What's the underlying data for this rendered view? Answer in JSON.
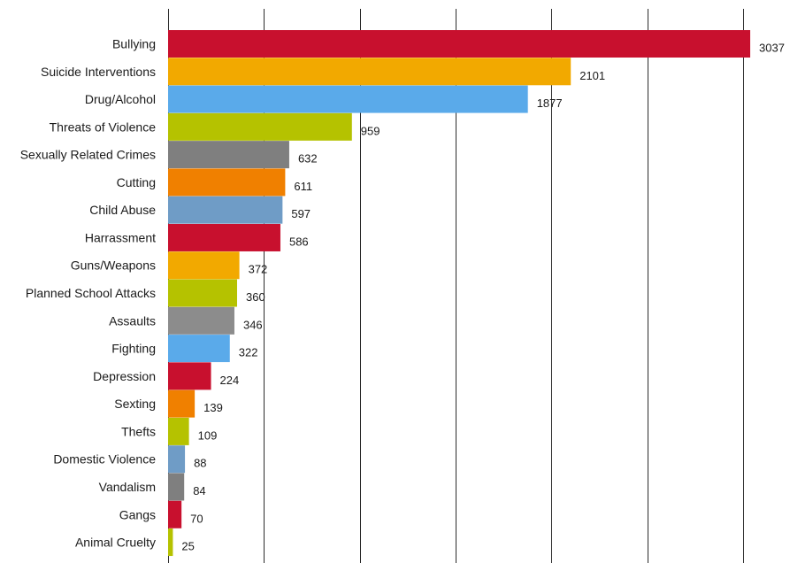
{
  "chart_data": {
    "type": "bar",
    "orientation": "horizontal",
    "title": "",
    "xlabel": "",
    "ylabel": "",
    "xlim": [
      0,
      3000
    ],
    "grid": "vertical",
    "legend": "none",
    "categories": [
      "Bullying",
      "Suicide Interventions",
      "Drug/Alcohol",
      "Threats of Violence",
      "Sexually Related Crimes",
      "Cutting",
      "Child Abuse",
      "Harrassment",
      "Guns/Weapons",
      "Planned School Attacks",
      "Assaults",
      "Fighting",
      "Depression",
      "Sexting",
      "Thefts",
      "Domestic Violence",
      "Vandalism",
      "Gangs",
      "Animal Cruelty"
    ],
    "values": [
      3037,
      2101,
      1877,
      959,
      632,
      611,
      597,
      586,
      372,
      360,
      346,
      322,
      224,
      139,
      109,
      88,
      84,
      70,
      25
    ],
    "value_labels": [
      "3037",
      "2101",
      "1877",
      "959",
      "632",
      "611",
      "597",
      "586",
      "372",
      "360",
      "346",
      "322",
      "224",
      "139",
      "109",
      "88",
      "84",
      "70",
      "25"
    ],
    "colors": [
      "#c8102e",
      "#f2a900",
      "#5aaaea",
      "#b5c200",
      "#7f7f7f",
      "#f08000",
      "#6f9cc6",
      "#c8102e",
      "#f2a900",
      "#b5c200",
      "#8c8c8c",
      "#5aaaea",
      "#c8102e",
      "#f08000",
      "#b5c200",
      "#6f9cc6",
      "#7f7f7f",
      "#c8102e",
      "#b5c200"
    ]
  }
}
